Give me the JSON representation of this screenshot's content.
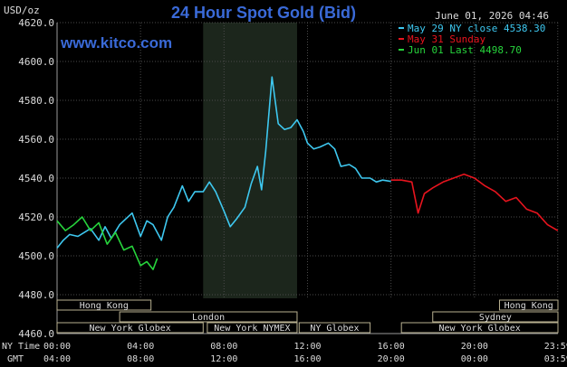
{
  "chart_data": {
    "type": "line",
    "title": "24 Hour Spot Gold (Bid)",
    "ylabel": "USD/oz",
    "timestamp": "June 01, 2026 04:46",
    "website": "www.kitco.com",
    "ylim": [
      4460,
      4620
    ],
    "y_ticks": [
      "4620.0",
      "4600.0",
      "4580.0",
      "4560.0",
      "4540.0",
      "4520.0",
      "4500.0",
      "4480.0",
      "4460.0"
    ],
    "xlim": [
      0,
      24
    ],
    "x_ticks_ny": [
      "00:00",
      "04:00",
      "08:00",
      "12:00",
      "16:00",
      "20:00",
      "23:59"
    ],
    "x_ticks_gmt": [
      "04:00",
      "08:00",
      "12:00",
      "16:00",
      "20:00",
      "00:00",
      "03:59"
    ],
    "x_axis_labels": {
      "ny": "NY Time",
      "gmt": "GMT"
    },
    "shaded_region_hours": [
      7,
      11.5
    ],
    "grid": true,
    "legend_position": "top-right",
    "legend": [
      {
        "label": "May 29 NY close 4538.30",
        "color": "#3ec8f0"
      },
      {
        "label": "May 31 Sunday",
        "color": "#e8141e"
      },
      {
        "label": "Jun 01 Last 4498.70",
        "color": "#27d43c"
      }
    ],
    "series": [
      {
        "name": "May 29 NY close 4538.30",
        "color": "#3ec8f0",
        "x": [
          0,
          0.3,
          0.6,
          1,
          1.3,
          1.6,
          2,
          2.3,
          2.6,
          3,
          3.3,
          3.6,
          4,
          4.3,
          4.6,
          5,
          5.3,
          5.6,
          6,
          6.3,
          6.6,
          7,
          7.3,
          7.6,
          8,
          8.3,
          8.6,
          9,
          9.3,
          9.6,
          9.8,
          10,
          10.3,
          10.6,
          10.9,
          11.2,
          11.5,
          11.8,
          12,
          12.3,
          12.6,
          13,
          13.3,
          13.6,
          14,
          14.3,
          14.6,
          15,
          15.3,
          15.6,
          16
        ],
        "y": [
          4504,
          4508,
          4511,
          4510,
          4512,
          4514,
          4508,
          4515,
          4509,
          4516,
          4519,
          4522,
          4510,
          4518,
          4516,
          4508,
          4520,
          4525,
          4536,
          4528,
          4533,
          4533,
          4538,
          4533,
          4523,
          4515,
          4519,
          4525,
          4537,
          4546,
          4534,
          4554,
          4592,
          4568,
          4565,
          4566,
          4570,
          4564,
          4558,
          4555,
          4556,
          4558,
          4555,
          4546,
          4547,
          4545,
          4540,
          4540,
          4538,
          4539,
          4538.3
        ]
      },
      {
        "name": "May 31 Sunday",
        "color": "#e8141e",
        "x": [
          16,
          16.5,
          17,
          17.3,
          17.6,
          18,
          18.5,
          19,
          19.5,
          20,
          20.5,
          21,
          21.5,
          22,
          22.5,
          23,
          23.5,
          23.99
        ],
        "y": [
          4539,
          4539,
          4538,
          4522,
          4532,
          4535,
          4538,
          4540,
          4542,
          4540,
          4536,
          4533,
          4528,
          4530,
          4524,
          4522,
          4516,
          4513
        ]
      },
      {
        "name": "Jun 01 Last 4498.70",
        "color": "#27d43c",
        "x": [
          0,
          0.4,
          0.8,
          1.2,
          1.6,
          2,
          2.4,
          2.8,
          3.2,
          3.6,
          4,
          4.3,
          4.6,
          4.8
        ],
        "y": [
          4518,
          4513,
          4516,
          4520,
          4513,
          4517,
          4506,
          4512,
          4503,
          4505,
          4495,
          4497,
          4493,
          4498.7
        ]
      }
    ],
    "sessions": [
      {
        "label": "Hong Kong",
        "start": 0,
        "end": 4.5,
        "row": 1
      },
      {
        "label": "Hong Kong",
        "start": 21.2,
        "end": 24,
        "row": 1
      },
      {
        "label": "London",
        "start": 3,
        "end": 11.5,
        "row": 2
      },
      {
        "label": "Sydney",
        "start": 18,
        "end": 24,
        "row": 2
      },
      {
        "label": "New York Globex",
        "start": 0,
        "end": 7,
        "row": 3
      },
      {
        "label": "New York NYMEX",
        "start": 7.2,
        "end": 11.5,
        "row": 3
      },
      {
        "label": "NY Globex",
        "start": 11.6,
        "end": 15,
        "row": 3
      },
      {
        "label": "New York Globex",
        "start": 16.5,
        "end": 24,
        "row": 3
      }
    ]
  }
}
